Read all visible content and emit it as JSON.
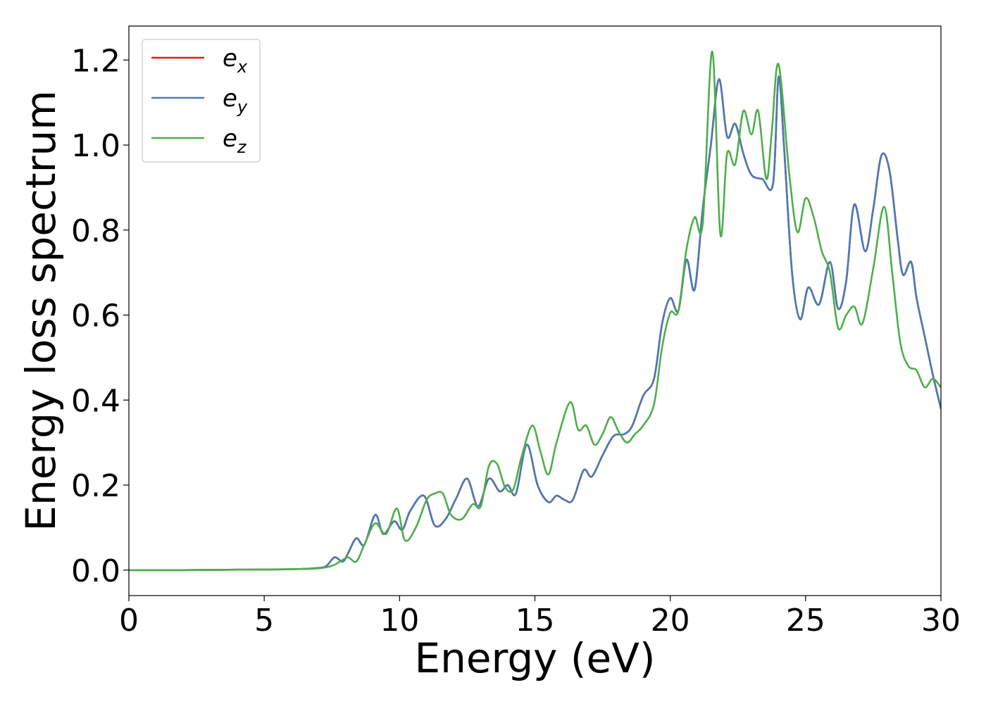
{
  "chart_data": {
    "type": "line",
    "title": "",
    "xlabel": "Energy (eV)",
    "ylabel": "Energy loss spectrum",
    "xlim": [
      0,
      30
    ],
    "ylim": [
      -0.06,
      1.28
    ],
    "xticks": [
      0,
      5,
      10,
      15,
      20,
      25,
      30
    ],
    "yticks": [
      0.0,
      0.2,
      0.4,
      0.6,
      0.8,
      1.0,
      1.2
    ],
    "xtick_labels": [
      "0",
      "5",
      "10",
      "15",
      "20",
      "25",
      "30"
    ],
    "ytick_labels": [
      "0.0",
      "0.2",
      "0.4",
      "0.6",
      "0.8",
      "1.0",
      "1.2"
    ],
    "grid": false,
    "legend_position": "top-left",
    "series": [
      {
        "name": "e_x",
        "legend_base": "e",
        "legend_sub": "x",
        "color": "#e41a1c",
        "x": [
          0,
          2,
          4,
          6,
          7,
          7.3,
          7.6,
          7.9,
          8.1,
          8.4,
          8.7,
          9.1,
          9.4,
          9.8,
          10.1,
          10.4,
          10.9,
          11.3,
          11.7,
          12.1,
          12.5,
          12.9,
          13.3,
          13.7,
          14.0,
          14.3,
          14.7,
          15.1,
          15.5,
          15.8,
          16.1,
          16.4,
          16.8,
          17.1,
          17.5,
          17.9,
          18.3,
          18.6,
          19.0,
          19.4,
          19.7,
          20.0,
          20.3,
          20.6,
          20.9,
          21.2,
          21.5,
          21.8,
          22.1,
          22.4,
          22.7,
          23.0,
          23.4,
          23.8,
          24.0,
          24.2,
          24.5,
          24.8,
          25.1,
          25.5,
          25.9,
          26.2,
          26.5,
          26.8,
          27.2,
          27.5,
          27.8,
          28.1,
          28.4,
          28.6,
          28.9,
          29.1,
          29.4,
          29.7,
          30.0
        ],
        "y": [
          0.0,
          0.0,
          0.001,
          0.002,
          0.005,
          0.01,
          0.03,
          0.02,
          0.04,
          0.075,
          0.06,
          0.13,
          0.085,
          0.115,
          0.095,
          0.14,
          0.175,
          0.105,
          0.12,
          0.17,
          0.215,
          0.15,
          0.215,
          0.185,
          0.2,
          0.18,
          0.295,
          0.2,
          0.16,
          0.175,
          0.165,
          0.165,
          0.235,
          0.22,
          0.27,
          0.315,
          0.32,
          0.34,
          0.41,
          0.45,
          0.58,
          0.64,
          0.61,
          0.73,
          0.66,
          0.85,
          1.0,
          1.155,
          1.02,
          1.05,
          0.98,
          0.93,
          0.92,
          0.91,
          1.16,
          1.0,
          0.7,
          0.59,
          0.665,
          0.625,
          0.725,
          0.615,
          0.68,
          0.86,
          0.75,
          0.85,
          0.975,
          0.94,
          0.78,
          0.695,
          0.725,
          0.64,
          0.55,
          0.46,
          0.38
        ]
      },
      {
        "name": "e_y",
        "legend_base": "e",
        "legend_sub": "y",
        "color": "#4a7ab5",
        "x": [
          0,
          2,
          4,
          6,
          7,
          7.3,
          7.6,
          7.9,
          8.1,
          8.4,
          8.7,
          9.1,
          9.4,
          9.8,
          10.1,
          10.4,
          10.9,
          11.3,
          11.7,
          12.1,
          12.5,
          12.9,
          13.3,
          13.7,
          14.0,
          14.3,
          14.7,
          15.1,
          15.5,
          15.8,
          16.1,
          16.4,
          16.8,
          17.1,
          17.5,
          17.9,
          18.3,
          18.6,
          19.0,
          19.4,
          19.7,
          20.0,
          20.3,
          20.6,
          20.9,
          21.2,
          21.5,
          21.8,
          22.1,
          22.4,
          22.7,
          23.0,
          23.4,
          23.8,
          24.0,
          24.2,
          24.5,
          24.8,
          25.1,
          25.5,
          25.9,
          26.2,
          26.5,
          26.8,
          27.2,
          27.5,
          27.8,
          28.1,
          28.4,
          28.6,
          28.9,
          29.1,
          29.4,
          29.7,
          30.0
        ],
        "y": [
          0.0,
          0.0,
          0.001,
          0.002,
          0.005,
          0.01,
          0.03,
          0.02,
          0.04,
          0.075,
          0.06,
          0.13,
          0.085,
          0.115,
          0.095,
          0.14,
          0.175,
          0.105,
          0.12,
          0.17,
          0.215,
          0.15,
          0.215,
          0.185,
          0.2,
          0.18,
          0.295,
          0.2,
          0.16,
          0.175,
          0.165,
          0.165,
          0.235,
          0.22,
          0.27,
          0.315,
          0.32,
          0.34,
          0.41,
          0.45,
          0.58,
          0.64,
          0.61,
          0.73,
          0.66,
          0.85,
          1.0,
          1.155,
          1.02,
          1.05,
          0.98,
          0.93,
          0.92,
          0.91,
          1.16,
          1.0,
          0.7,
          0.59,
          0.665,
          0.625,
          0.725,
          0.615,
          0.68,
          0.86,
          0.75,
          0.85,
          0.975,
          0.94,
          0.78,
          0.695,
          0.725,
          0.64,
          0.55,
          0.46,
          0.38
        ]
      },
      {
        "name": "e_z",
        "legend_base": "e",
        "legend_sub": "z",
        "color": "#4daf4a",
        "x": [
          0,
          2,
          4,
          6,
          7,
          7.5,
          7.8,
          8.1,
          8.4,
          8.7,
          9.1,
          9.5,
          9.9,
          10.2,
          10.6,
          11.0,
          11.3,
          11.6,
          11.9,
          12.3,
          12.7,
          13.0,
          13.3,
          13.6,
          13.9,
          14.2,
          14.5,
          14.9,
          15.2,
          15.5,
          15.8,
          16.3,
          16.6,
          16.9,
          17.2,
          17.5,
          17.8,
          18.1,
          18.4,
          18.7,
          19.0,
          19.4,
          19.7,
          20.0,
          20.3,
          20.6,
          20.9,
          21.2,
          21.55,
          21.85,
          22.1,
          22.4,
          22.7,
          23.0,
          23.25,
          23.55,
          23.75,
          24.0,
          24.4,
          24.7,
          25.0,
          25.3,
          25.6,
          25.9,
          26.2,
          26.5,
          26.8,
          27.1,
          27.5,
          27.9,
          28.2,
          28.5,
          28.8,
          29.1,
          29.4,
          29.7,
          30.0
        ],
        "y": [
          0.0,
          0.0,
          0.001,
          0.002,
          0.004,
          0.01,
          0.02,
          0.03,
          0.02,
          0.06,
          0.11,
          0.085,
          0.145,
          0.07,
          0.1,
          0.165,
          0.18,
          0.18,
          0.13,
          0.12,
          0.155,
          0.15,
          0.245,
          0.25,
          0.195,
          0.19,
          0.265,
          0.34,
          0.28,
          0.225,
          0.3,
          0.395,
          0.33,
          0.34,
          0.295,
          0.32,
          0.36,
          0.325,
          0.3,
          0.32,
          0.34,
          0.39,
          0.525,
          0.605,
          0.61,
          0.755,
          0.83,
          0.815,
          1.22,
          0.79,
          0.98,
          0.955,
          1.08,
          1.025,
          1.08,
          0.92,
          1.03,
          1.19,
          0.93,
          0.795,
          0.875,
          0.83,
          0.75,
          0.7,
          0.57,
          0.6,
          0.62,
          0.58,
          0.71,
          0.855,
          0.7,
          0.535,
          0.48,
          0.47,
          0.43,
          0.45,
          0.43
        ]
      }
    ]
  }
}
